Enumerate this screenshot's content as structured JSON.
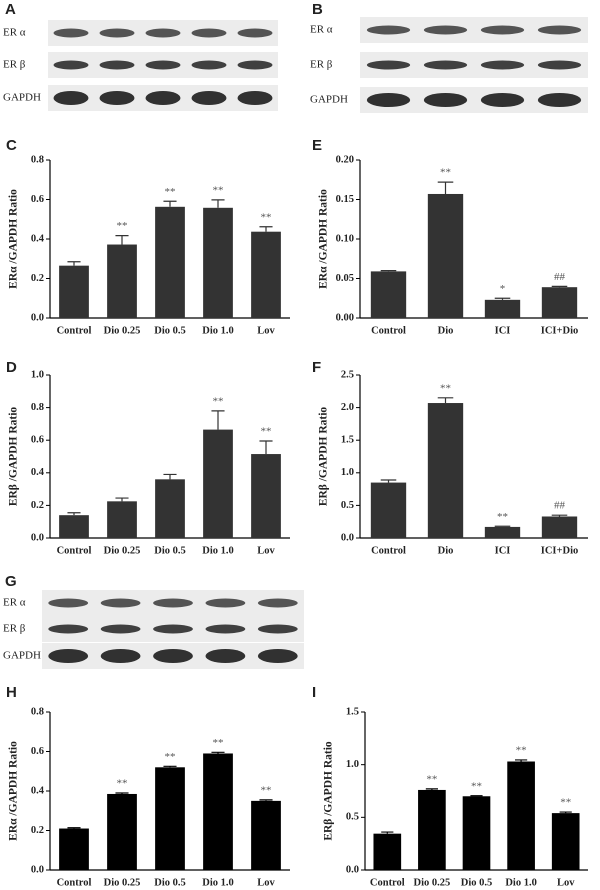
{
  "blots": [
    {
      "panel": "A",
      "rows": [
        "ER α",
        "ER β",
        "GAPDH"
      ]
    },
    {
      "panel": "B",
      "rows": [
        "ER α",
        "ER β",
        "GAPDH"
      ]
    },
    {
      "panel": "G",
      "rows": [
        "ER α",
        "ER β",
        "GAPDH"
      ]
    }
  ],
  "chart_data": [
    {
      "type": "bar",
      "panel": "C",
      "y_label": "ERα /GAPDH Ratio",
      "color": "#333333",
      "categories": [
        "Control",
        "Dio 0.25",
        "Dio 0.5",
        "Dio 1.0",
        "Lov"
      ],
      "values": [
        0.265,
        0.372,
        0.563,
        0.558,
        0.437
      ],
      "errors": [
        0.02,
        0.045,
        0.028,
        0.04,
        0.025
      ],
      "annotations": [
        null,
        "**",
        "**",
        "**",
        "**"
      ],
      "ylim": [
        0,
        0.8
      ],
      "yticks": [
        {
          "value": 0,
          "label": "0.0"
        },
        0.2,
        0.4,
        0.6,
        0.8
      ]
    },
    {
      "type": "bar",
      "panel": "E",
      "y_label": "ERα /GAPDH Ratio",
      "color": "#333333",
      "categories": [
        "Control",
        "Dio",
        "ICI",
        "ICI+Dio"
      ],
      "values": [
        0.059,
        0.157,
        0.023,
        0.039
      ],
      "errors": [
        0.001,
        0.015,
        0.002,
        0.001
      ],
      "annotations": [
        null,
        "**",
        "*",
        "##"
      ],
      "ylim": [
        0,
        0.2
      ],
      "yticks": [
        {
          "value": 0,
          "label": "0.00"
        },
        0.05,
        {
          "value": 0.1,
          "label": "0.10"
        },
        0.15,
        {
          "value": 0.2,
          "label": "0.20"
        }
      ]
    },
    {
      "type": "bar",
      "panel": "D",
      "y_label": "ERβ /GAPDH Ratio",
      "color": "#333333",
      "categories": [
        "Control",
        "Dio 0.25",
        "Dio 0.5",
        "Dio 1.0",
        "Lov"
      ],
      "values": [
        0.14,
        0.225,
        0.36,
        0.665,
        0.515
      ],
      "errors": [
        0.015,
        0.02,
        0.03,
        0.115,
        0.08
      ],
      "annotations": [
        null,
        null,
        null,
        "**",
        "**"
      ],
      "ylim": [
        0,
        1.0
      ],
      "yticks": [
        {
          "value": 0,
          "label": "0.0"
        },
        0.2,
        0.4,
        0.6,
        0.8,
        {
          "value": 1.0,
          "label": "1.0"
        }
      ]
    },
    {
      "type": "bar",
      "panel": "F",
      "y_label": "ERβ /GAPDH Ratio",
      "color": "#333333",
      "categories": [
        "Control",
        "Dio",
        "ICI",
        "ICI+Dio"
      ],
      "values": [
        0.85,
        2.07,
        0.17,
        0.33
      ],
      "errors": [
        0.04,
        0.08,
        0.01,
        0.02
      ],
      "annotations": [
        null,
        "**",
        "**",
        "##"
      ],
      "ylim": [
        0,
        2.5
      ],
      "yticks": [
        {
          "value": 0,
          "label": "0.0"
        },
        0.5,
        {
          "value": 1.0,
          "label": "1.0"
        },
        1.5,
        {
          "value": 2.0,
          "label": "2.0"
        },
        2.5
      ]
    },
    {
      "type": "bar",
      "panel": "H",
      "y_label": "ERα /GAPDH Ratio",
      "color": "#000000",
      "categories": [
        "Control",
        "Dio 0.25",
        "Dio 0.5",
        "Dio 1.0",
        "Lov"
      ],
      "values": [
        0.21,
        0.385,
        0.52,
        0.59,
        0.35
      ],
      "errors": [
        0.004,
        0.005,
        0.005,
        0.006,
        0.005
      ],
      "annotations": [
        null,
        "**",
        "**",
        "**",
        "**"
      ],
      "ylim": [
        0,
        0.8
      ],
      "yticks": [
        {
          "value": 0,
          "label": "0.0"
        },
        0.2,
        0.4,
        0.6,
        0.8
      ]
    },
    {
      "type": "bar",
      "panel": "I",
      "y_label": "ERβ /GAPDH Ratio",
      "color": "#000000",
      "categories": [
        "Control",
        "Dio 0.25",
        "Dio 0.5",
        "Dio 1.0",
        "Lov"
      ],
      "values": [
        0.345,
        0.76,
        0.7,
        1.03,
        0.54
      ],
      "errors": [
        0.015,
        0.01,
        0.005,
        0.015,
        0.01
      ],
      "annotations": [
        null,
        "**",
        "**",
        "**",
        "**"
      ],
      "ylim": [
        0,
        1.5
      ],
      "yticks": [
        {
          "value": 0,
          "label": "0.0"
        },
        0.5,
        {
          "value": 1.0,
          "label": "1.0"
        },
        1.5
      ]
    }
  ]
}
